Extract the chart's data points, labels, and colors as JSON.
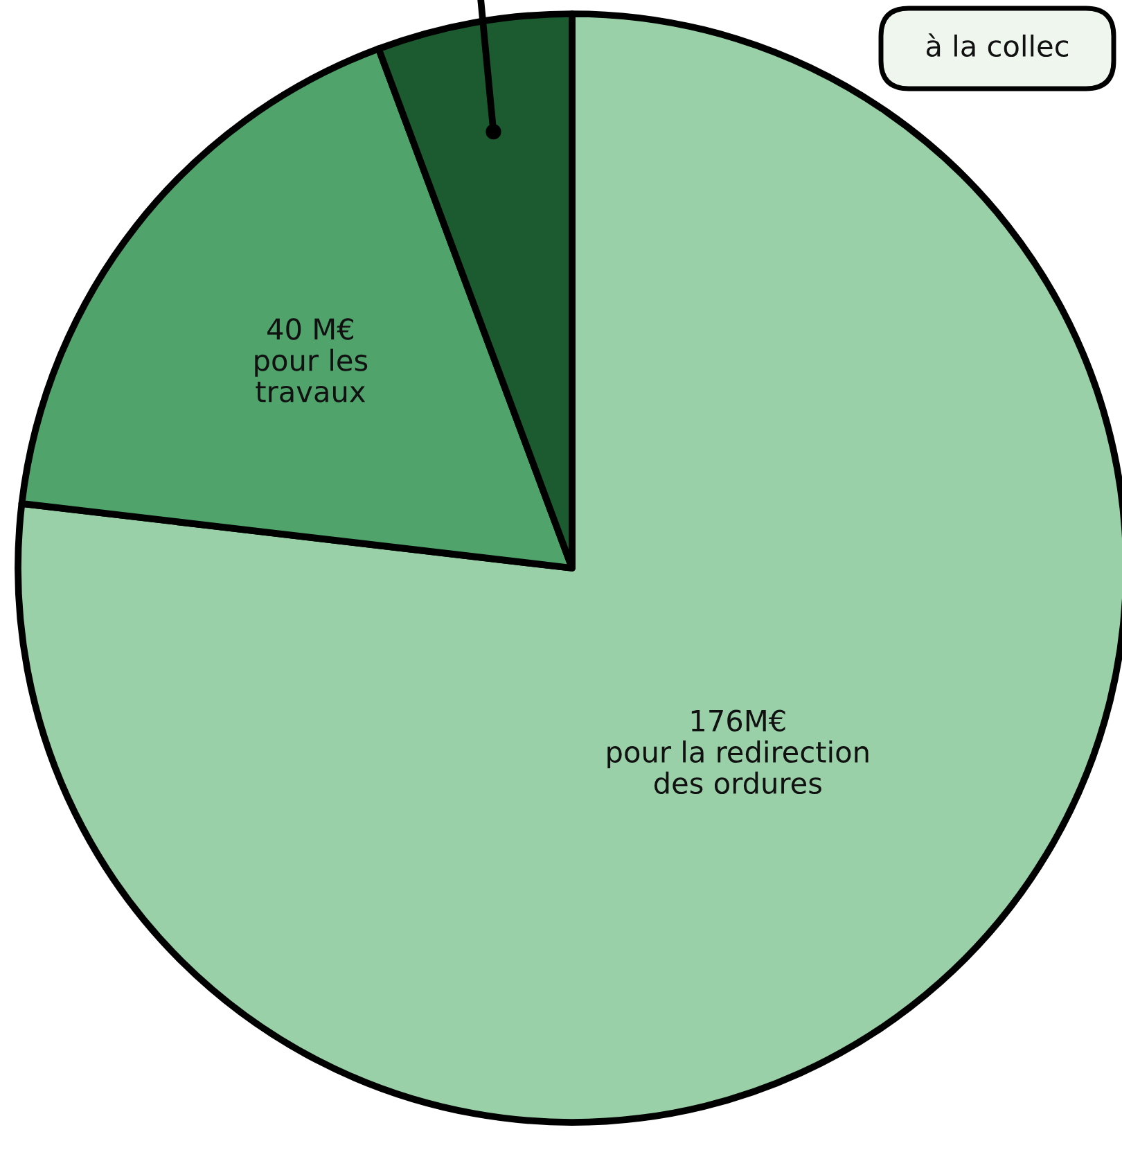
{
  "chart_data": {
    "type": "pie",
    "categories": [
      "pour la redirection\ndes ordures",
      "pour les\ntravaux",
      null
    ],
    "values": [
      176,
      40,
      13
    ],
    "value_labels": [
      "176M€",
      "40 M€",
      null
    ],
    "colors": [
      "#99d0a8",
      "#4fa36b",
      "#1c5a30"
    ],
    "annotations": [
      "à la collec"
    ]
  }
}
